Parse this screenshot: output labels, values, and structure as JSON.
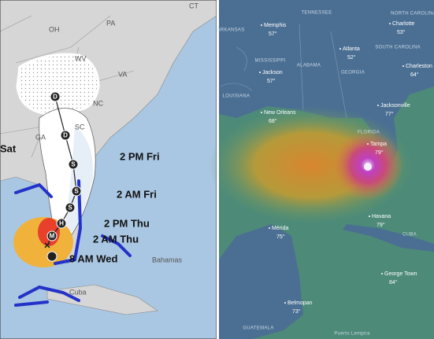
{
  "left_map": {
    "state_labels": [
      "OH",
      "PA",
      "CT",
      "WV",
      "VA",
      "NC",
      "SC",
      "GA"
    ],
    "forecast_labels": [
      "2 PM Fri",
      "2 AM Fri",
      "2 PM Thu",
      "2 AM Thu",
      "8 AM Wed"
    ],
    "marker_letters": [
      "D",
      "D",
      "S",
      "S",
      "S",
      "H",
      "M"
    ],
    "place_labels": [
      "Sat",
      "Bahamas",
      "Cuba"
    ]
  },
  "right_map": {
    "region_labels": [
      "TENNESSEE",
      "NORTH CAROLINA",
      "ARKANSAS",
      "MISSISSIPPI",
      "ALABAMA",
      "GEORGIA",
      "SOUTH CAROLINA",
      "LOUISIANA",
      "FLORIDA",
      "CUBA",
      "GUATEMALA",
      "Puerto Lempira"
    ],
    "cities": [
      {
        "name": "Memphis",
        "temp": "57°"
      },
      {
        "name": "Charlotte",
        "temp": "53°"
      },
      {
        "name": "Atlanta",
        "temp": "52°"
      },
      {
        "name": "Jackson",
        "temp": "57°"
      },
      {
        "name": "Charleston",
        "temp": "64°"
      },
      {
        "name": "New Orleans",
        "temp": "68°"
      },
      {
        "name": "Jacksonville",
        "temp": "77°"
      },
      {
        "name": "Tampa",
        "temp": "79°"
      },
      {
        "name": "Havana",
        "temp": "79°"
      },
      {
        "name": "Mérida",
        "temp": "75°"
      },
      {
        "name": "George Town",
        "temp": "84°"
      },
      {
        "name": "Belmopan",
        "temp": "73°"
      }
    ]
  }
}
